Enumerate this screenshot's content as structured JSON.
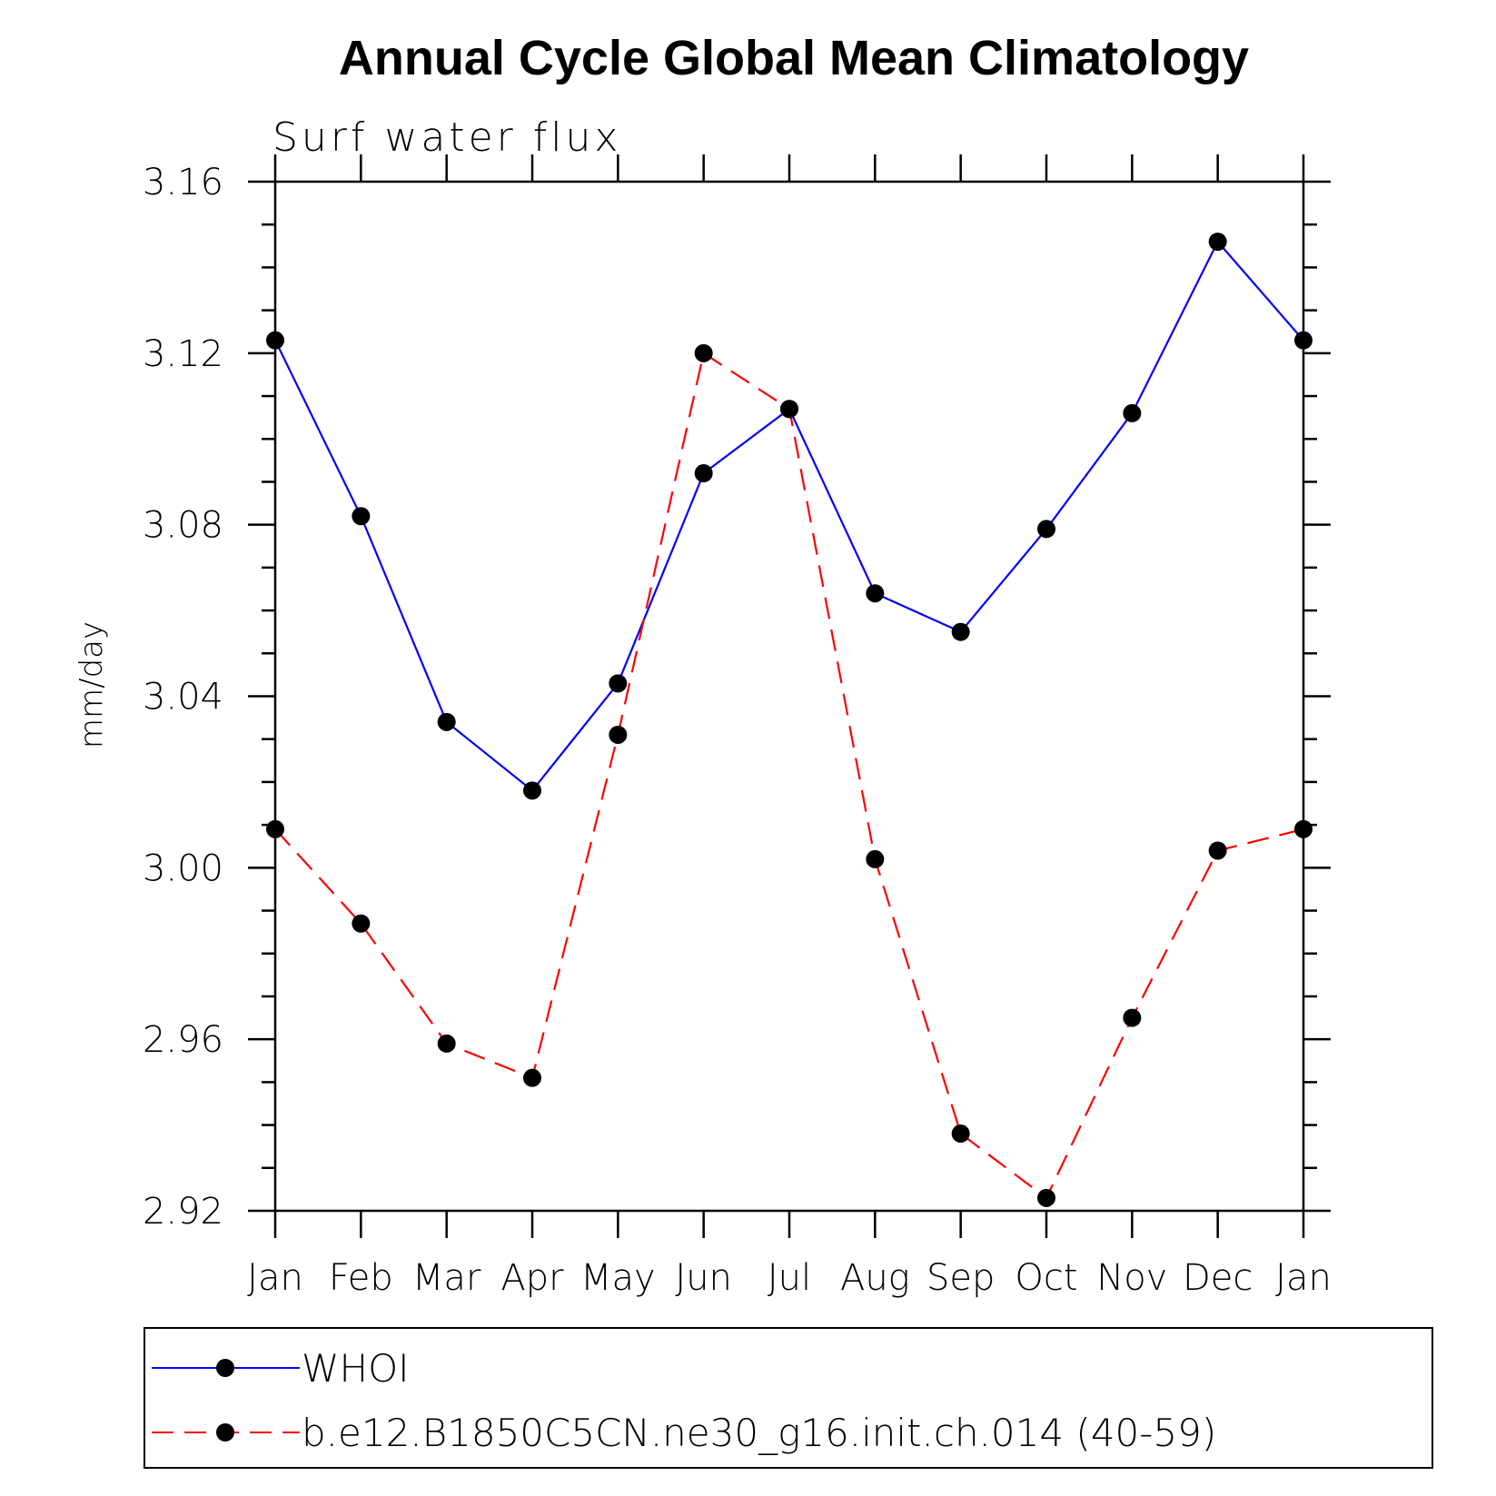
{
  "chart_data": {
    "type": "line",
    "title": "Annual Cycle Global Mean Climatology",
    "subtitle": "Surf water flux",
    "ylabel": "mm/day",
    "xlabel": "",
    "categories": [
      "Jan",
      "Feb",
      "Mar",
      "Apr",
      "May",
      "Jun",
      "Jul",
      "Aug",
      "Sep",
      "Oct",
      "Nov",
      "Dec",
      "Jan"
    ],
    "ylim": [
      2.92,
      3.16
    ],
    "yticks": [
      "3.16",
      "3.12",
      "3.08",
      "3.04",
      "3.00",
      "2.96",
      "2.92"
    ],
    "legend_position": "bottom",
    "series": [
      {
        "name": "WHOI",
        "color": "#0000ff",
        "dash": "solid",
        "marker": "filled-circle",
        "values": [
          3.123,
          3.082,
          3.034,
          3.018,
          3.043,
          3.092,
          3.107,
          3.064,
          3.055,
          3.079,
          3.106,
          3.146,
          3.123
        ]
      },
      {
        "name": "b.e12.B1850C5CN.ne30_g16.init.ch.014 (40-59)",
        "color": "#ff0000",
        "dash": "dashed",
        "marker": "filled-circle",
        "values": [
          3.009,
          2.987,
          2.959,
          2.951,
          3.031,
          3.12,
          3.107,
          3.002,
          2.938,
          2.923,
          2.965,
          3.004,
          3.009
        ]
      }
    ]
  }
}
